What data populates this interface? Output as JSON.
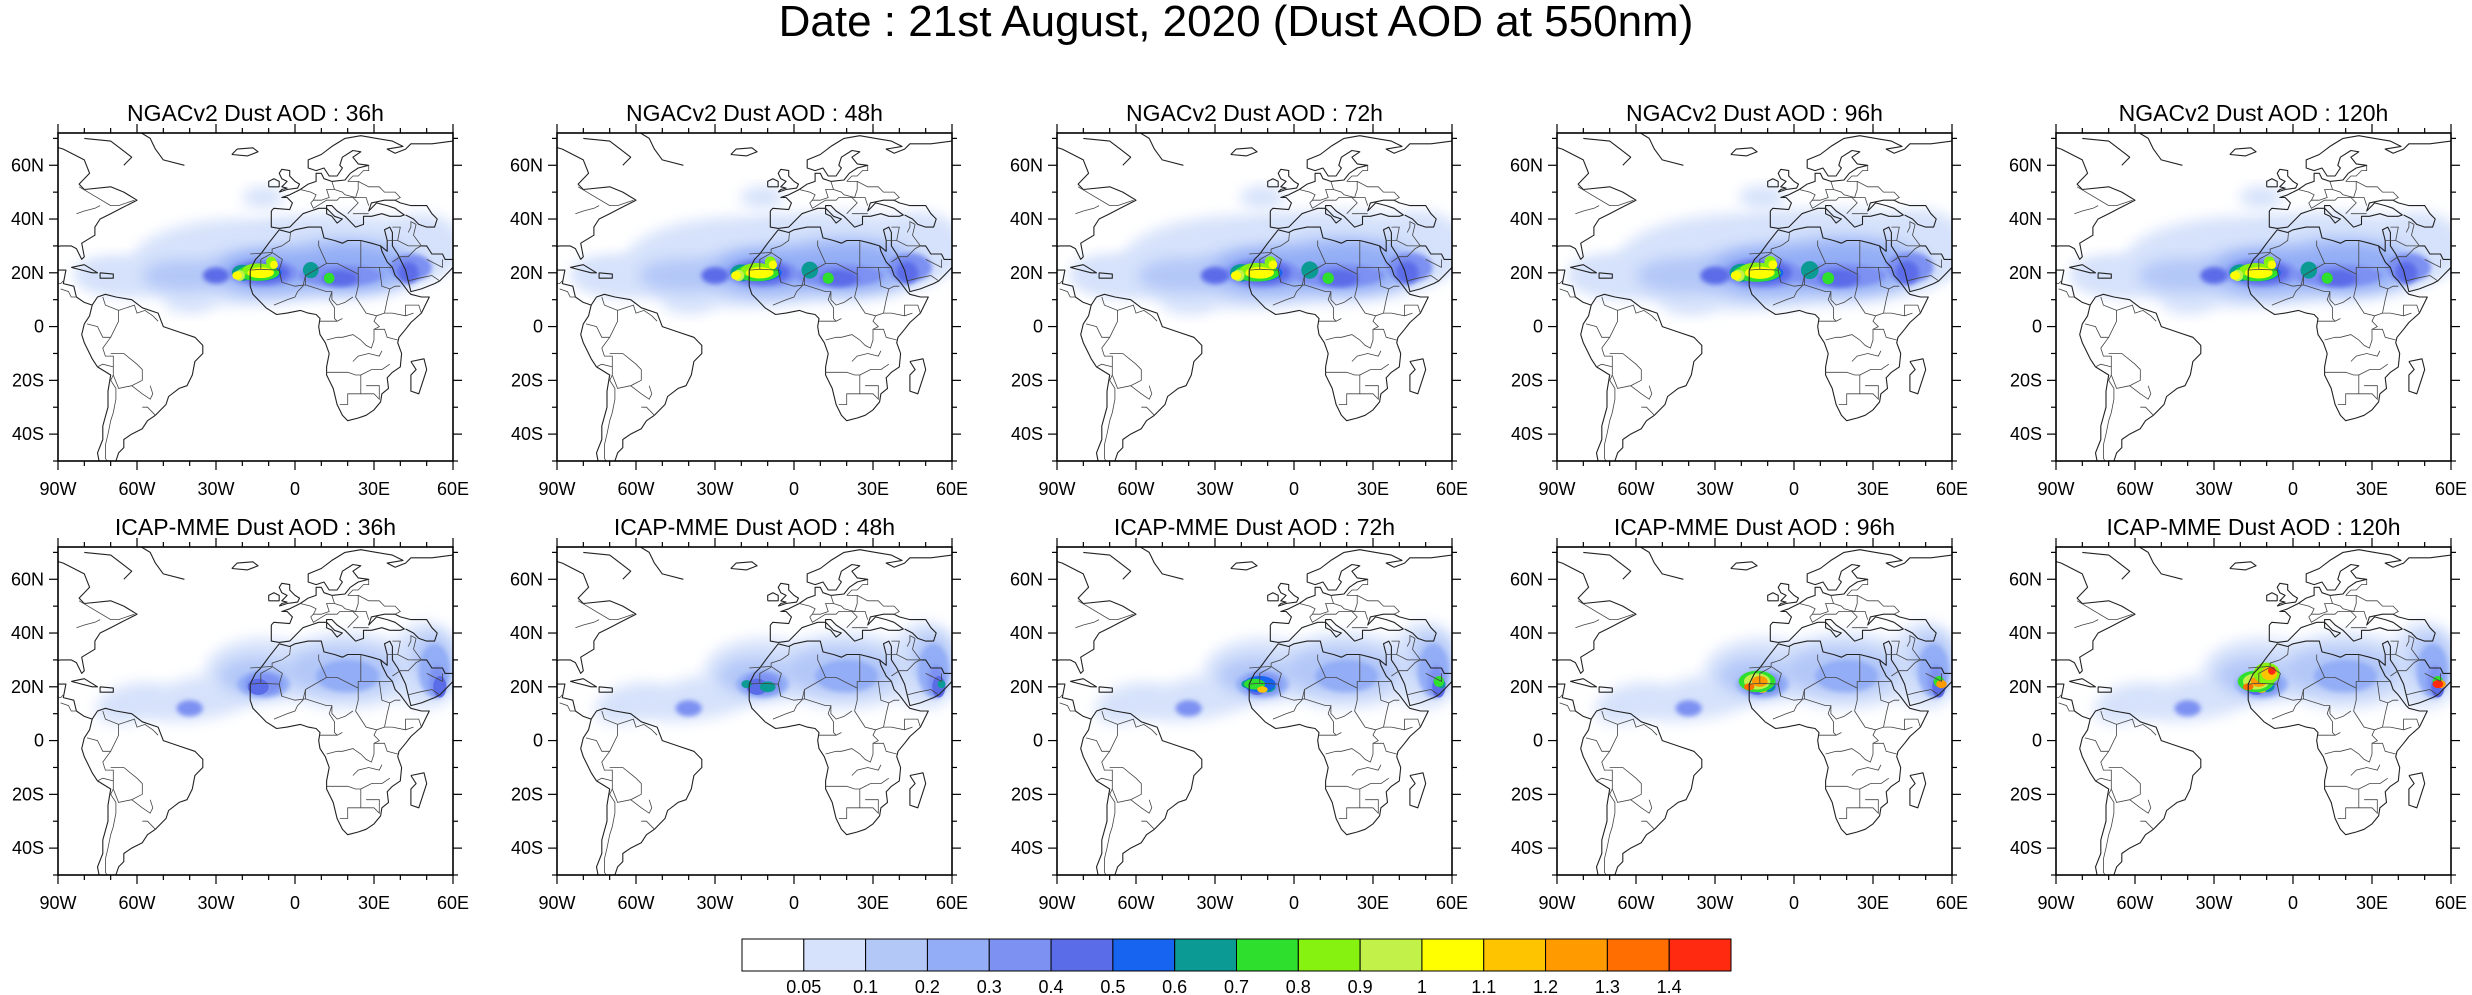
{
  "title": "Date : 21st August, 2020 (Dust AOD at 550nm)",
  "lon_labels": [
    "90W",
    "60W",
    "30W",
    "0",
    "30E",
    "60E"
  ],
  "lat_labels": [
    "60N",
    "40N",
    "20N",
    "0",
    "20S",
    "40S"
  ],
  "lon_range": [
    -90,
    60
  ],
  "lat_range": [
    -50,
    72
  ],
  "rows": [
    {
      "model": "NGACv2",
      "panels": [
        {
          "title": "NGACv2 Dust AOD : 36h",
          "forecast_hour": 36
        },
        {
          "title": "NGACv2 Dust AOD : 48h",
          "forecast_hour": 48
        },
        {
          "title": "NGACv2 Dust AOD : 72h",
          "forecast_hour": 72
        },
        {
          "title": "NGACv2 Dust AOD : 96h",
          "forecast_hour": 96
        },
        {
          "title": "NGACv2 Dust AOD : 120h",
          "forecast_hour": 120
        }
      ]
    },
    {
      "model": "ICAP-MME",
      "panels": [
        {
          "title": "ICAP-MME Dust AOD : 36h",
          "forecast_hour": 36
        },
        {
          "title": "ICAP-MME Dust AOD : 48h",
          "forecast_hour": 48
        },
        {
          "title": "ICAP-MME Dust AOD : 72h",
          "forecast_hour": 72
        },
        {
          "title": "ICAP-MME Dust AOD : 96h",
          "forecast_hour": 96
        },
        {
          "title": "ICAP-MME Dust AOD : 120h",
          "forecast_hour": 120
        }
      ]
    }
  ],
  "colorbar": {
    "labels": [
      "0.05",
      "0.1",
      "0.2",
      "0.3",
      "0.4",
      "0.5",
      "0.6",
      "0.7",
      "0.8",
      "0.9",
      "1",
      "1.1",
      "1.2",
      "1.3",
      "1.4"
    ],
    "colors": [
      "#ffffff",
      "#d6e2fb",
      "#b4c8f8",
      "#93adf6",
      "#7d91f2",
      "#5b6ce8",
      "#1664f0",
      "#0c9a94",
      "#2edf2e",
      "#86f20f",
      "#c2f24a",
      "#ffff00",
      "#ffc400",
      "#ff9a00",
      "#ff6e00",
      "#ff2a10"
    ]
  }
}
